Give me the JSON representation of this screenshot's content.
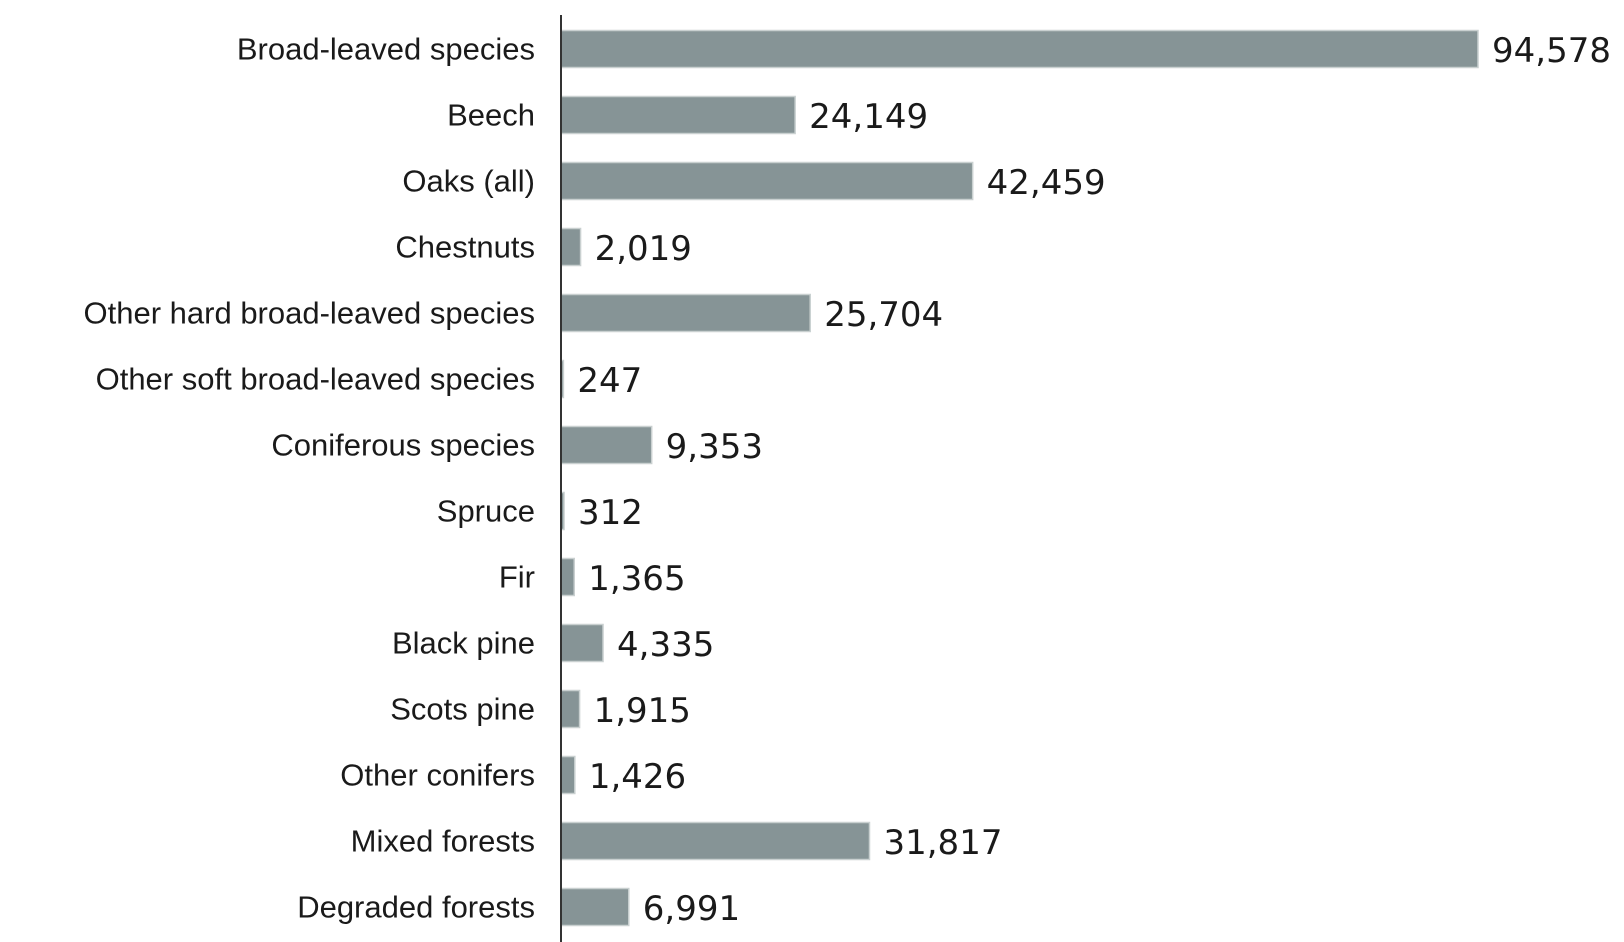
{
  "chart_data": {
    "type": "bar",
    "orientation": "horizontal",
    "categories": [
      "Broad-leaved species",
      "Beech",
      "Oaks (all)",
      "Chestnuts",
      "Other hard broad-leaved species",
      "Other soft broad-leaved species",
      "Coniferous species",
      "Spruce",
      "Fir",
      "Black pine",
      "Scots pine",
      "Other conifers",
      "Mixed forests",
      "Degraded forests"
    ],
    "values": [
      94578,
      24149,
      42459,
      2019,
      25704,
      247,
      9353,
      312,
      1365,
      4335,
      1915,
      1426,
      31817,
      6991
    ],
    "value_labels": [
      "94,578",
      "24,149",
      "42,459",
      "2,019",
      "25,704",
      "247",
      "9,353",
      "312",
      "1,365",
      "4,335",
      "1,915",
      "1,426",
      "31,817",
      "6,991"
    ],
    "xlim": [
      0,
      94578
    ],
    "title": "",
    "xlabel": "",
    "ylabel": "",
    "grid": false,
    "legend": "none",
    "bar_color": "#869496"
  }
}
